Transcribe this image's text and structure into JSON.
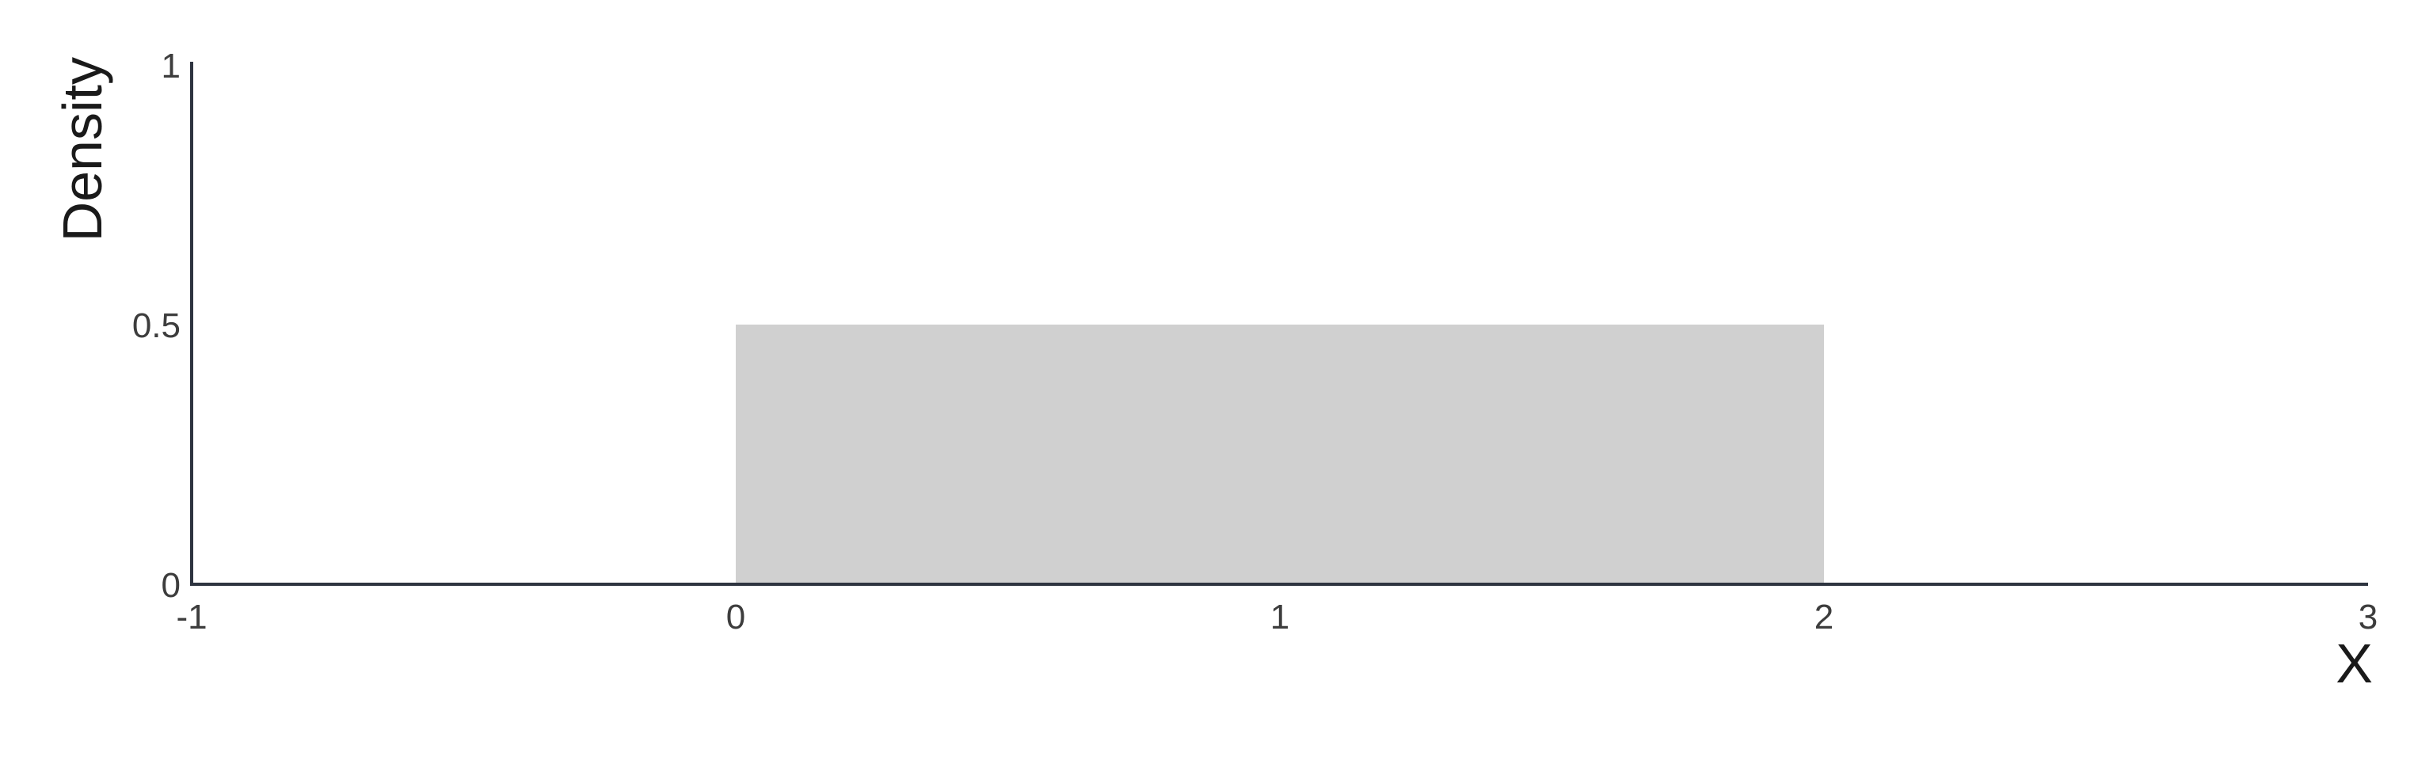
{
  "chart_data": {
    "type": "area",
    "title": "",
    "xlabel": "X",
    "ylabel": "Density",
    "xlim": [
      -1,
      3
    ],
    "ylim": [
      0,
      1
    ],
    "xticks": [
      "-1",
      "0",
      "1",
      "2",
      "3"
    ],
    "yticks": [
      "0",
      "0.5",
      "1"
    ],
    "grid": false,
    "legend": "none",
    "series": [
      {
        "x": [
          0,
          2
        ],
        "y": [
          0.5,
          0.5
        ],
        "fill": "#d0d0d0"
      }
    ]
  },
  "colors": {
    "axis": "#2e3440",
    "fill": "#d0d0d0",
    "background": "#ffffff"
  }
}
